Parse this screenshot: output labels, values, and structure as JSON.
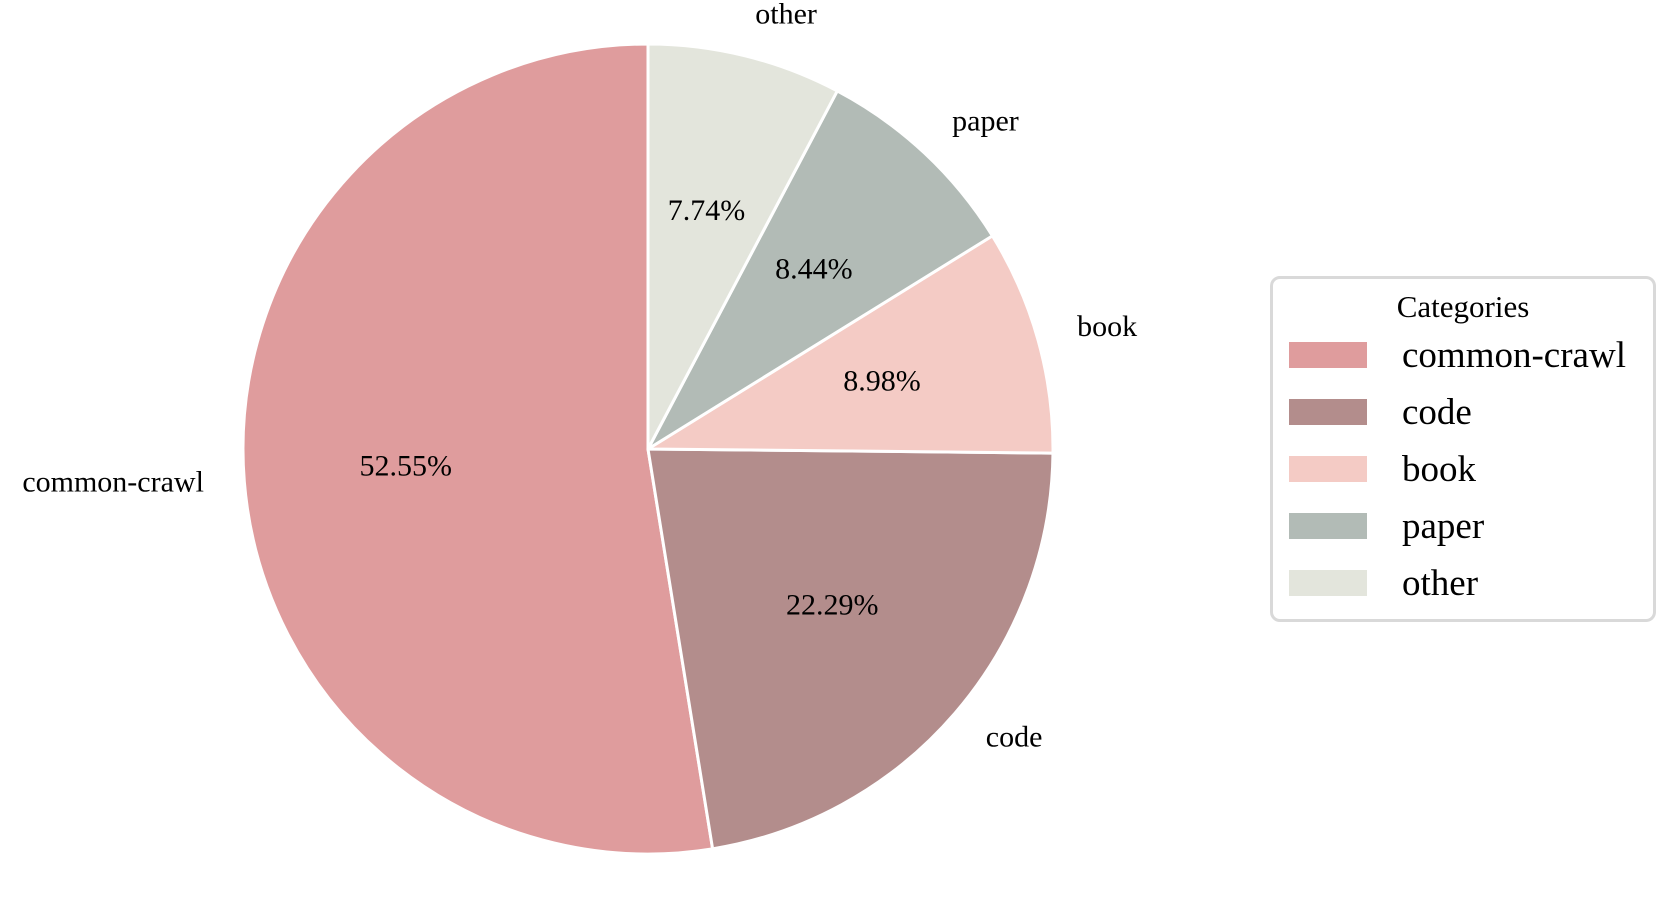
{
  "chart_data": {
    "type": "pie",
    "categories": [
      "common-crawl",
      "code",
      "book",
      "paper",
      "other"
    ],
    "values": [
      52.55,
      22.29,
      8.98,
      8.44,
      7.74
    ],
    "value_labels": [
      "52.55%",
      "22.29%",
      "8.98%",
      "8.44%",
      "7.74%"
    ],
    "colors": [
      "#df9c9d",
      "#b38d8c",
      "#f4cbc5",
      "#b2bbb6",
      "#e3e5dc"
    ],
    "start": "top",
    "direction": "counterclockwise",
    "legend": {
      "title": "Categories",
      "placement": "right"
    }
  }
}
